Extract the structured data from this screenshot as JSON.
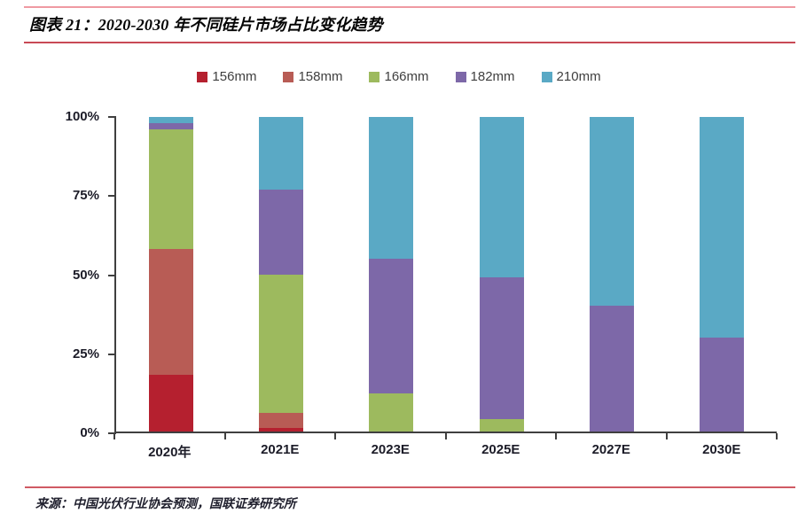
{
  "header": {
    "title": "图表 21：2020-2030 年不同硅片市场占比变化趋势"
  },
  "footer": {
    "source": "来源：中国光伏行业协会预测，国联证券研究所"
  },
  "accent_colors": {
    "header_top_line": "#ef9aa2",
    "title_underline": "#c84a55",
    "footer_line": "#d05a64",
    "axis": "#3f3f3f"
  },
  "chart_data": {
    "type": "bar",
    "stacked": true,
    "title": "2020-2030 年不同硅片市场占比变化趋势",
    "categories": [
      "2020年",
      "2021E",
      "2023E",
      "2025E",
      "2027E",
      "2030E"
    ],
    "series": [
      {
        "name": "156mm",
        "color": "#b5202f",
        "values": [
          18,
          1,
          0,
          0,
          0,
          0
        ]
      },
      {
        "name": "158mm",
        "color": "#b85c55",
        "values": [
          40,
          5,
          0,
          0,
          0,
          0
        ]
      },
      {
        "name": "166mm",
        "color": "#9dba5e",
        "values": [
          38,
          44,
          12,
          4,
          0,
          0
        ]
      },
      {
        "name": "182mm",
        "color": "#7d68a8",
        "values": [
          2,
          27,
          43,
          45,
          40,
          30
        ]
      },
      {
        "name": "210mm",
        "color": "#5aa9c5",
        "values": [
          2,
          23,
          45,
          51,
          60,
          70
        ]
      }
    ],
    "xlabel": "",
    "ylabel": "",
    "ylim": [
      0,
      100
    ],
    "yticks": [
      "0%",
      "25%",
      "50%",
      "75%",
      "100%"
    ],
    "legend_position": "top",
    "grid": false
  }
}
